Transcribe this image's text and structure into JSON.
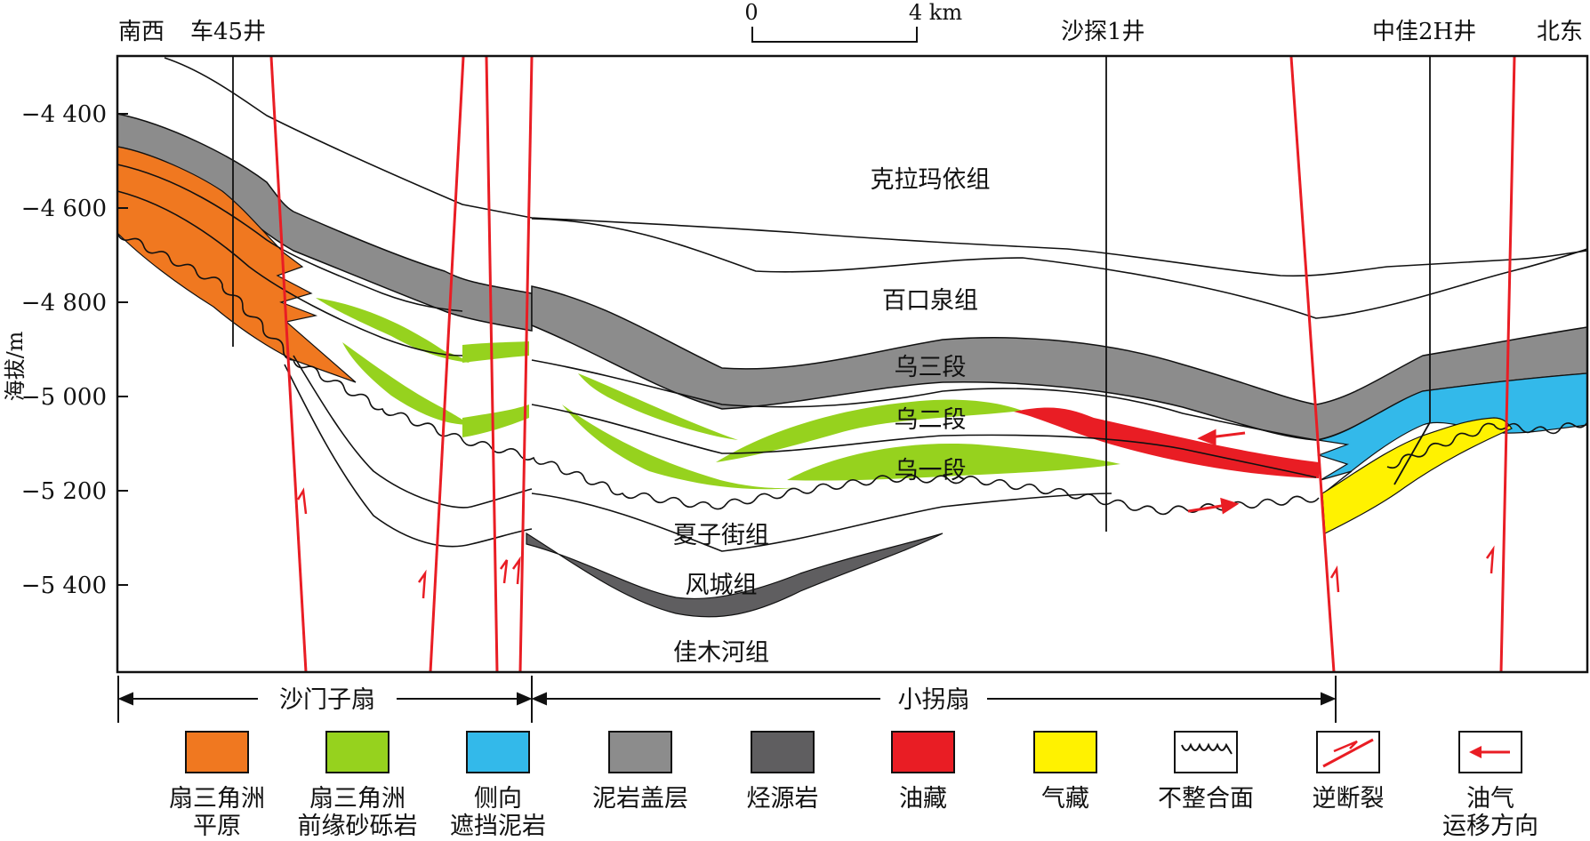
{
  "header": {
    "left_direction": "南西",
    "right_direction": "北东",
    "wells": [
      "车45井",
      "沙探1井",
      "中佳2H井"
    ]
  },
  "scale_bar": {
    "start_label": "0",
    "end_label": "4 km"
  },
  "y_axis": {
    "title": "海拔/m",
    "ticks": [
      "−4 400",
      "−4 600",
      "−4 800",
      "−5 000",
      "−5 200",
      "−5 400"
    ]
  },
  "formations": {
    "kelamayi": "克拉玛依组",
    "baikouquan": "百口泉组",
    "wu3": "乌三段",
    "wu2": "乌二段",
    "wu1": "乌一段",
    "xiazijie": "夏子街组",
    "fengcheng": "风城组",
    "jiamuhe": "佳木河组"
  },
  "fans": {
    "left": "沙门子扇",
    "right": "小拐扇"
  },
  "legend": [
    {
      "line1": "扇三角洲",
      "line2": "平原",
      "swatch": "fill",
      "color": "#f07820",
      "icon": "fan-delta-plain-swatch"
    },
    {
      "line1": "扇三角洲",
      "line2": "前缘砂砾岩",
      "swatch": "fill",
      "color": "#96d21e",
      "icon": "fan-delta-front-swatch"
    },
    {
      "line1": "侧向",
      "line2": "遮挡泥岩",
      "swatch": "fill",
      "color": "#33b9ea",
      "icon": "lateral-seal-mudstone-swatch"
    },
    {
      "line1": "泥岩盖层",
      "line2": "",
      "swatch": "fill",
      "color": "#8c8c8c",
      "icon": "mudstone-caprock-swatch"
    },
    {
      "line1": "烃源岩",
      "line2": "",
      "swatch": "fill",
      "color": "#5f5e60",
      "icon": "source-rock-swatch"
    },
    {
      "line1": "油藏",
      "line2": "",
      "swatch": "fill",
      "color": "#e91d24",
      "icon": "oil-reservoir-swatch"
    },
    {
      "line1": "气藏",
      "line2": "",
      "swatch": "fill",
      "color": "#fff200",
      "icon": "gas-reservoir-swatch"
    },
    {
      "line1": "不整合面",
      "line2": "",
      "swatch": "wavy",
      "color": "#111111",
      "icon": "unconformity-icon"
    },
    {
      "line1": "逆断裂",
      "line2": "",
      "swatch": "fault",
      "color": "#e91d24",
      "icon": "reverse-fault-icon"
    },
    {
      "line1": "油气",
      "line2": "运移方向",
      "swatch": "arrow",
      "color": "#e91d24",
      "icon": "migration-arrow-icon"
    }
  ],
  "colors": {
    "fan_plain": "#f07820",
    "fan_front": "#96d21e",
    "seal_mudstone": "#33b9ea",
    "caprock": "#8c8c8c",
    "source_rock": "#5f5e60",
    "oil": "#e91d24",
    "gas": "#fff200",
    "fault": "#e91d24"
  }
}
